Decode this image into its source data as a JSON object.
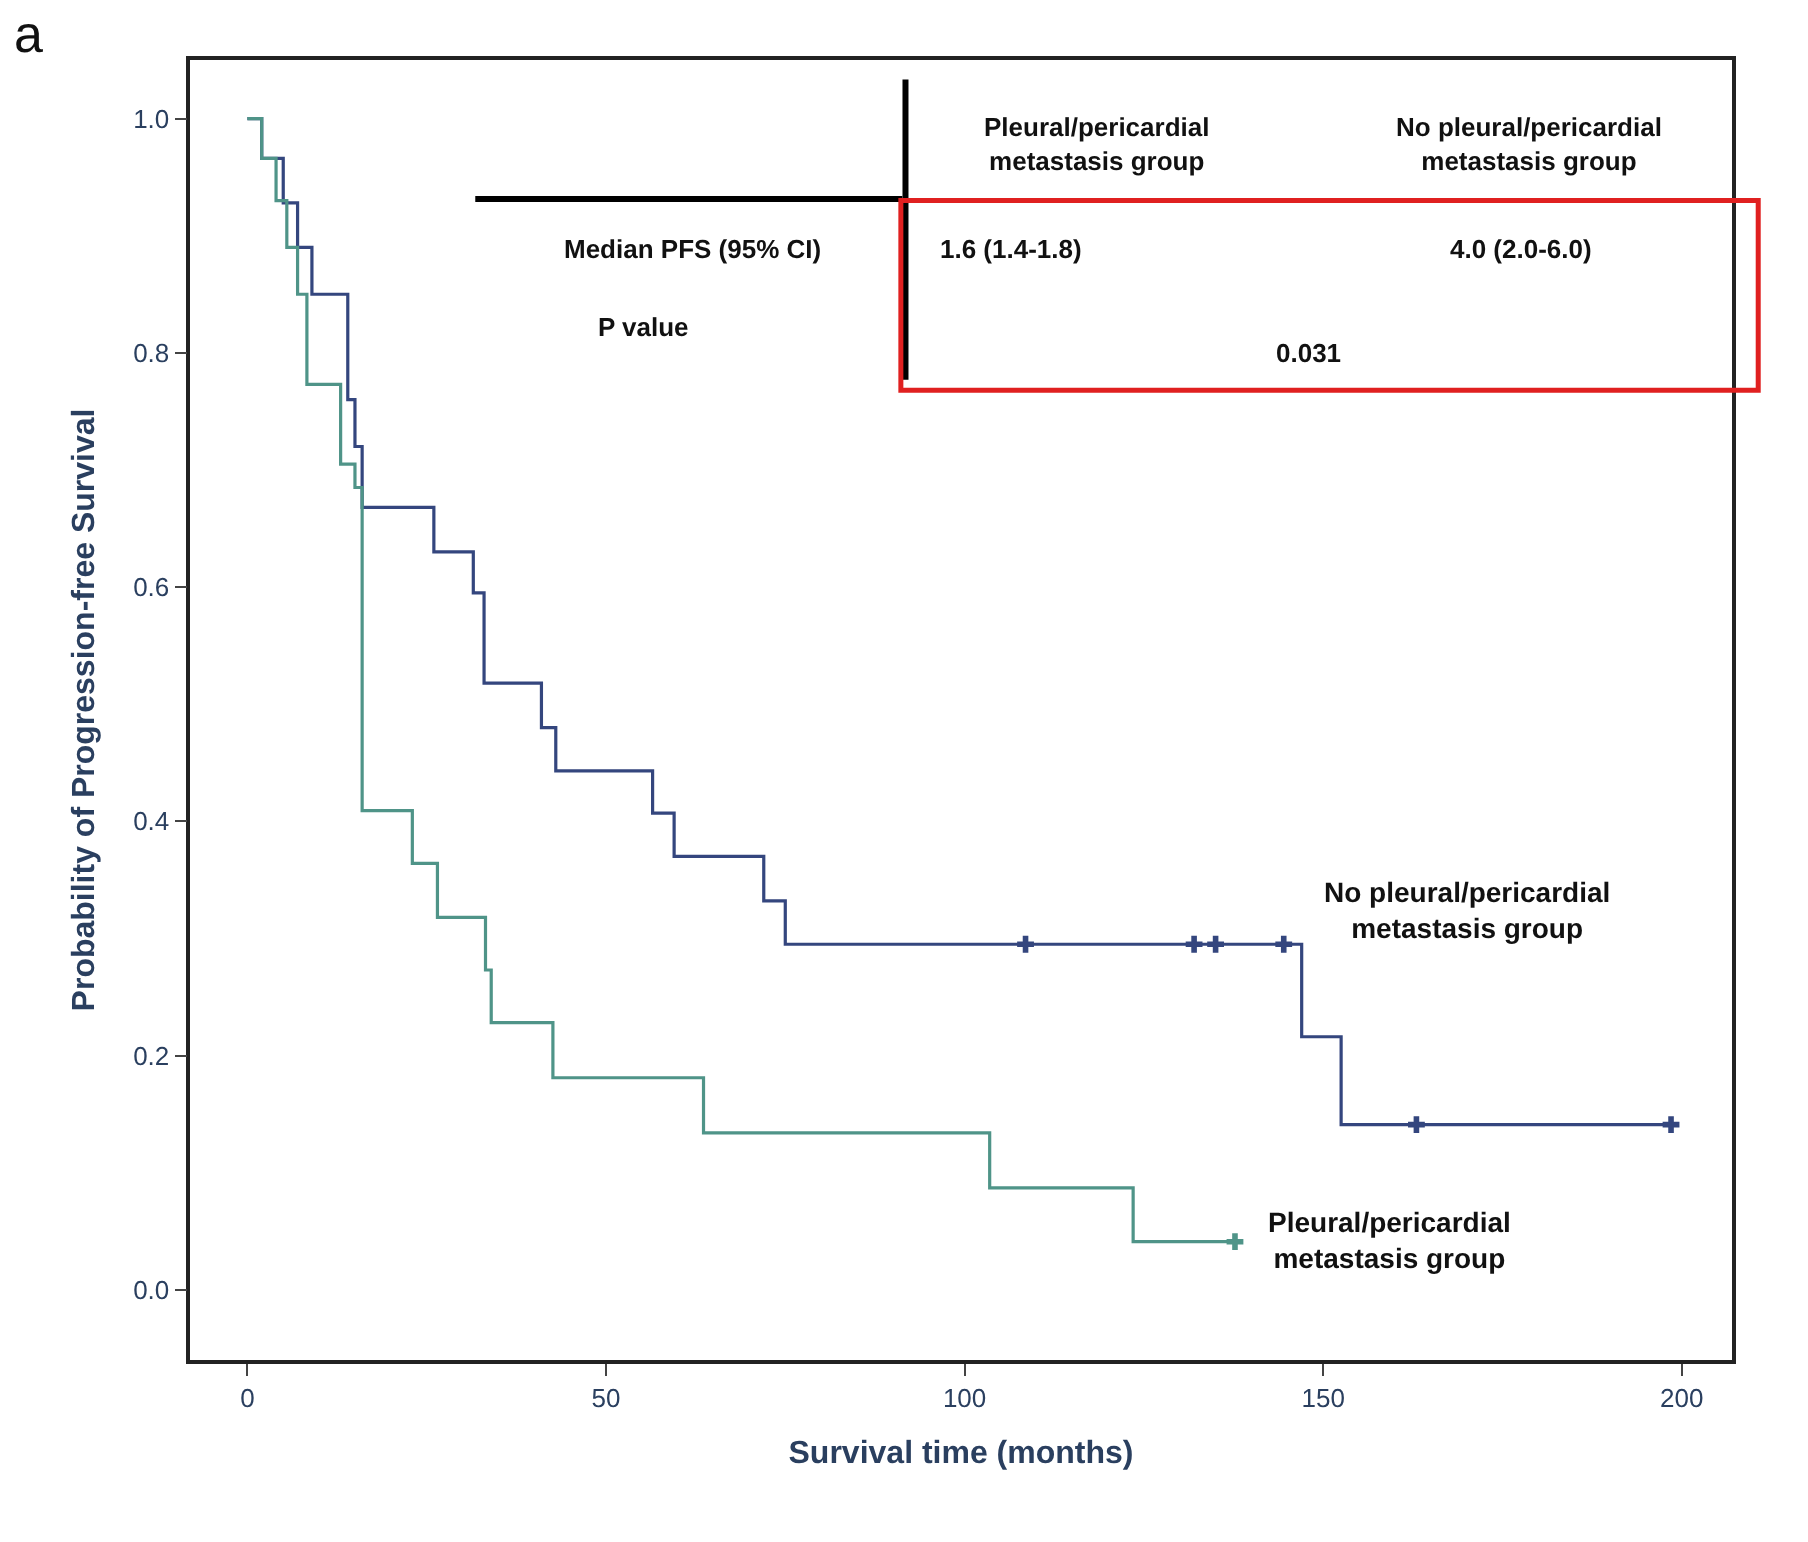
{
  "chart_data": {
    "type": "step",
    "xlabel": "Survival time (months)",
    "ylabel": "Probability of Progression-free Survival",
    "xlim": [
      -8,
      207
    ],
    "xticks": [
      0,
      50,
      100,
      150,
      200
    ],
    "ylim": [
      -0.06,
      1.05
    ],
    "yticks": [
      {
        "value": 0,
        "label": "0.0"
      },
      {
        "value": 0.2,
        "label": "0.2"
      },
      {
        "value": 0.4,
        "label": "0.4"
      },
      {
        "value": 0.6,
        "label": "0.6"
      },
      {
        "value": 0.8,
        "label": "0.8"
      },
      {
        "value": 1.0,
        "label": "1.0"
      }
    ],
    "legend": false,
    "marker": "none",
    "series": [
      {
        "name": "No pleural/pericardial\nmetastasis group",
        "color": "#34467e",
        "x": [
          0,
          2,
          5,
          7,
          9,
          14,
          15,
          16,
          26,
          31.5,
          33,
          41,
          43,
          56.5,
          59.5,
          72,
          75,
          147,
          152.5,
          198.5
        ],
        "values": [
          1.0,
          0.966,
          0.928,
          0.89,
          0.85,
          0.76,
          0.72,
          0.668,
          0.63,
          0.595,
          0.518,
          0.48,
          0.443,
          0.407,
          0.37,
          0.332,
          0.295,
          0.216,
          0.141,
          0.141
        ]
      },
      {
        "name": "Pleural/pericardial\nmetastasis group",
        "color": "#4f9488",
        "x": [
          0,
          2,
          4,
          5.5,
          7,
          8.3,
          13,
          15,
          16,
          23,
          26.5,
          33.2,
          34,
          42.6,
          63.6,
          103.5,
          123.5,
          137.7
        ],
        "values": [
          1.0,
          0.966,
          0.93,
          0.89,
          0.85,
          0.773,
          0.705,
          0.685,
          0.409,
          0.364,
          0.318,
          0.273,
          0.228,
          0.181,
          0.134,
          0.087,
          0.041,
          0.041
        ]
      },
      {
        "type": "scatter",
        "marker": "cross",
        "color": "#34467e",
        "x": [
          108.5,
          132,
          135,
          144.5,
          163,
          198.5
        ],
        "values": [
          0.295,
          0.295,
          0.295,
          0.295,
          0.141,
          0.141
        ]
      },
      {
        "type": "scatter",
        "marker": "cross",
        "color": "#4f9488",
        "x": [
          137.7
        ],
        "values": [
          0.041
        ]
      }
    ],
    "annotations": [
      "Pleural/pericardial\nmetastasis group",
      "No pleural/pericardial\nmetastasis group",
      "Median PFS (95% CI)",
      "1.6 (1.4-1.8)",
      "4.0 (2.0-6.0)",
      "P value",
      "0.031",
      "a"
    ]
  }
}
